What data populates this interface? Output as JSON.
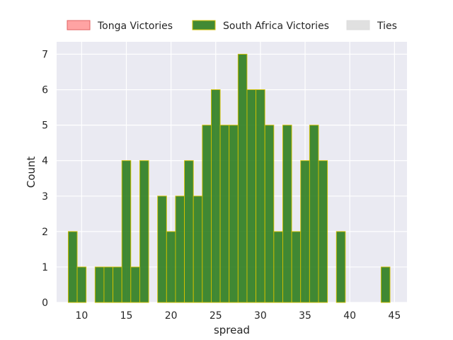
{
  "chart_data": {
    "type": "bar",
    "title": "",
    "xlabel": "spread",
    "ylabel": "Count",
    "xlim": [
      7.2,
      46.4
    ],
    "ylim": [
      0,
      7.35
    ],
    "x_ticks": [
      10,
      15,
      20,
      25,
      30,
      35,
      40,
      45
    ],
    "y_ticks": [
      0,
      1,
      2,
      3,
      4,
      5,
      6,
      7
    ],
    "grid": true,
    "legend_position": "top",
    "bin_width": 1,
    "series": [
      {
        "name": "Tonga Victories",
        "color": "#ff9999",
        "edge_color": "#e06060",
        "bins": []
      },
      {
        "name": "South Africa Victories",
        "color": "#2e7d1e",
        "edge_color": "#d4c100",
        "bins": [
          {
            "x": 8.5,
            "count": 2
          },
          {
            "x": 9.5,
            "count": 1
          },
          {
            "x": 11.5,
            "count": 1
          },
          {
            "x": 12.5,
            "count": 1
          },
          {
            "x": 13.5,
            "count": 1
          },
          {
            "x": 14.5,
            "count": 4
          },
          {
            "x": 15.5,
            "count": 1
          },
          {
            "x": 16.5,
            "count": 4
          },
          {
            "x": 18.5,
            "count": 3
          },
          {
            "x": 19.5,
            "count": 2
          },
          {
            "x": 20.5,
            "count": 3
          },
          {
            "x": 21.5,
            "count": 4
          },
          {
            "x": 22.5,
            "count": 3
          },
          {
            "x": 23.5,
            "count": 5
          },
          {
            "x": 24.5,
            "count": 6
          },
          {
            "x": 25.5,
            "count": 5
          },
          {
            "x": 26.5,
            "count": 5
          },
          {
            "x": 27.5,
            "count": 7
          },
          {
            "x": 28.5,
            "count": 6
          },
          {
            "x": 29.5,
            "count": 6
          },
          {
            "x": 30.5,
            "count": 5
          },
          {
            "x": 31.5,
            "count": 2
          },
          {
            "x": 32.5,
            "count": 5
          },
          {
            "x": 33.5,
            "count": 2
          },
          {
            "x": 34.5,
            "count": 4
          },
          {
            "x": 35.5,
            "count": 5
          },
          {
            "x": 36.5,
            "count": 4
          },
          {
            "x": 38.5,
            "count": 2
          },
          {
            "x": 43.5,
            "count": 1
          }
        ]
      },
      {
        "name": "Ties",
        "color": "#dddddd",
        "edge_color": "#dddddd",
        "bins": []
      }
    ]
  }
}
